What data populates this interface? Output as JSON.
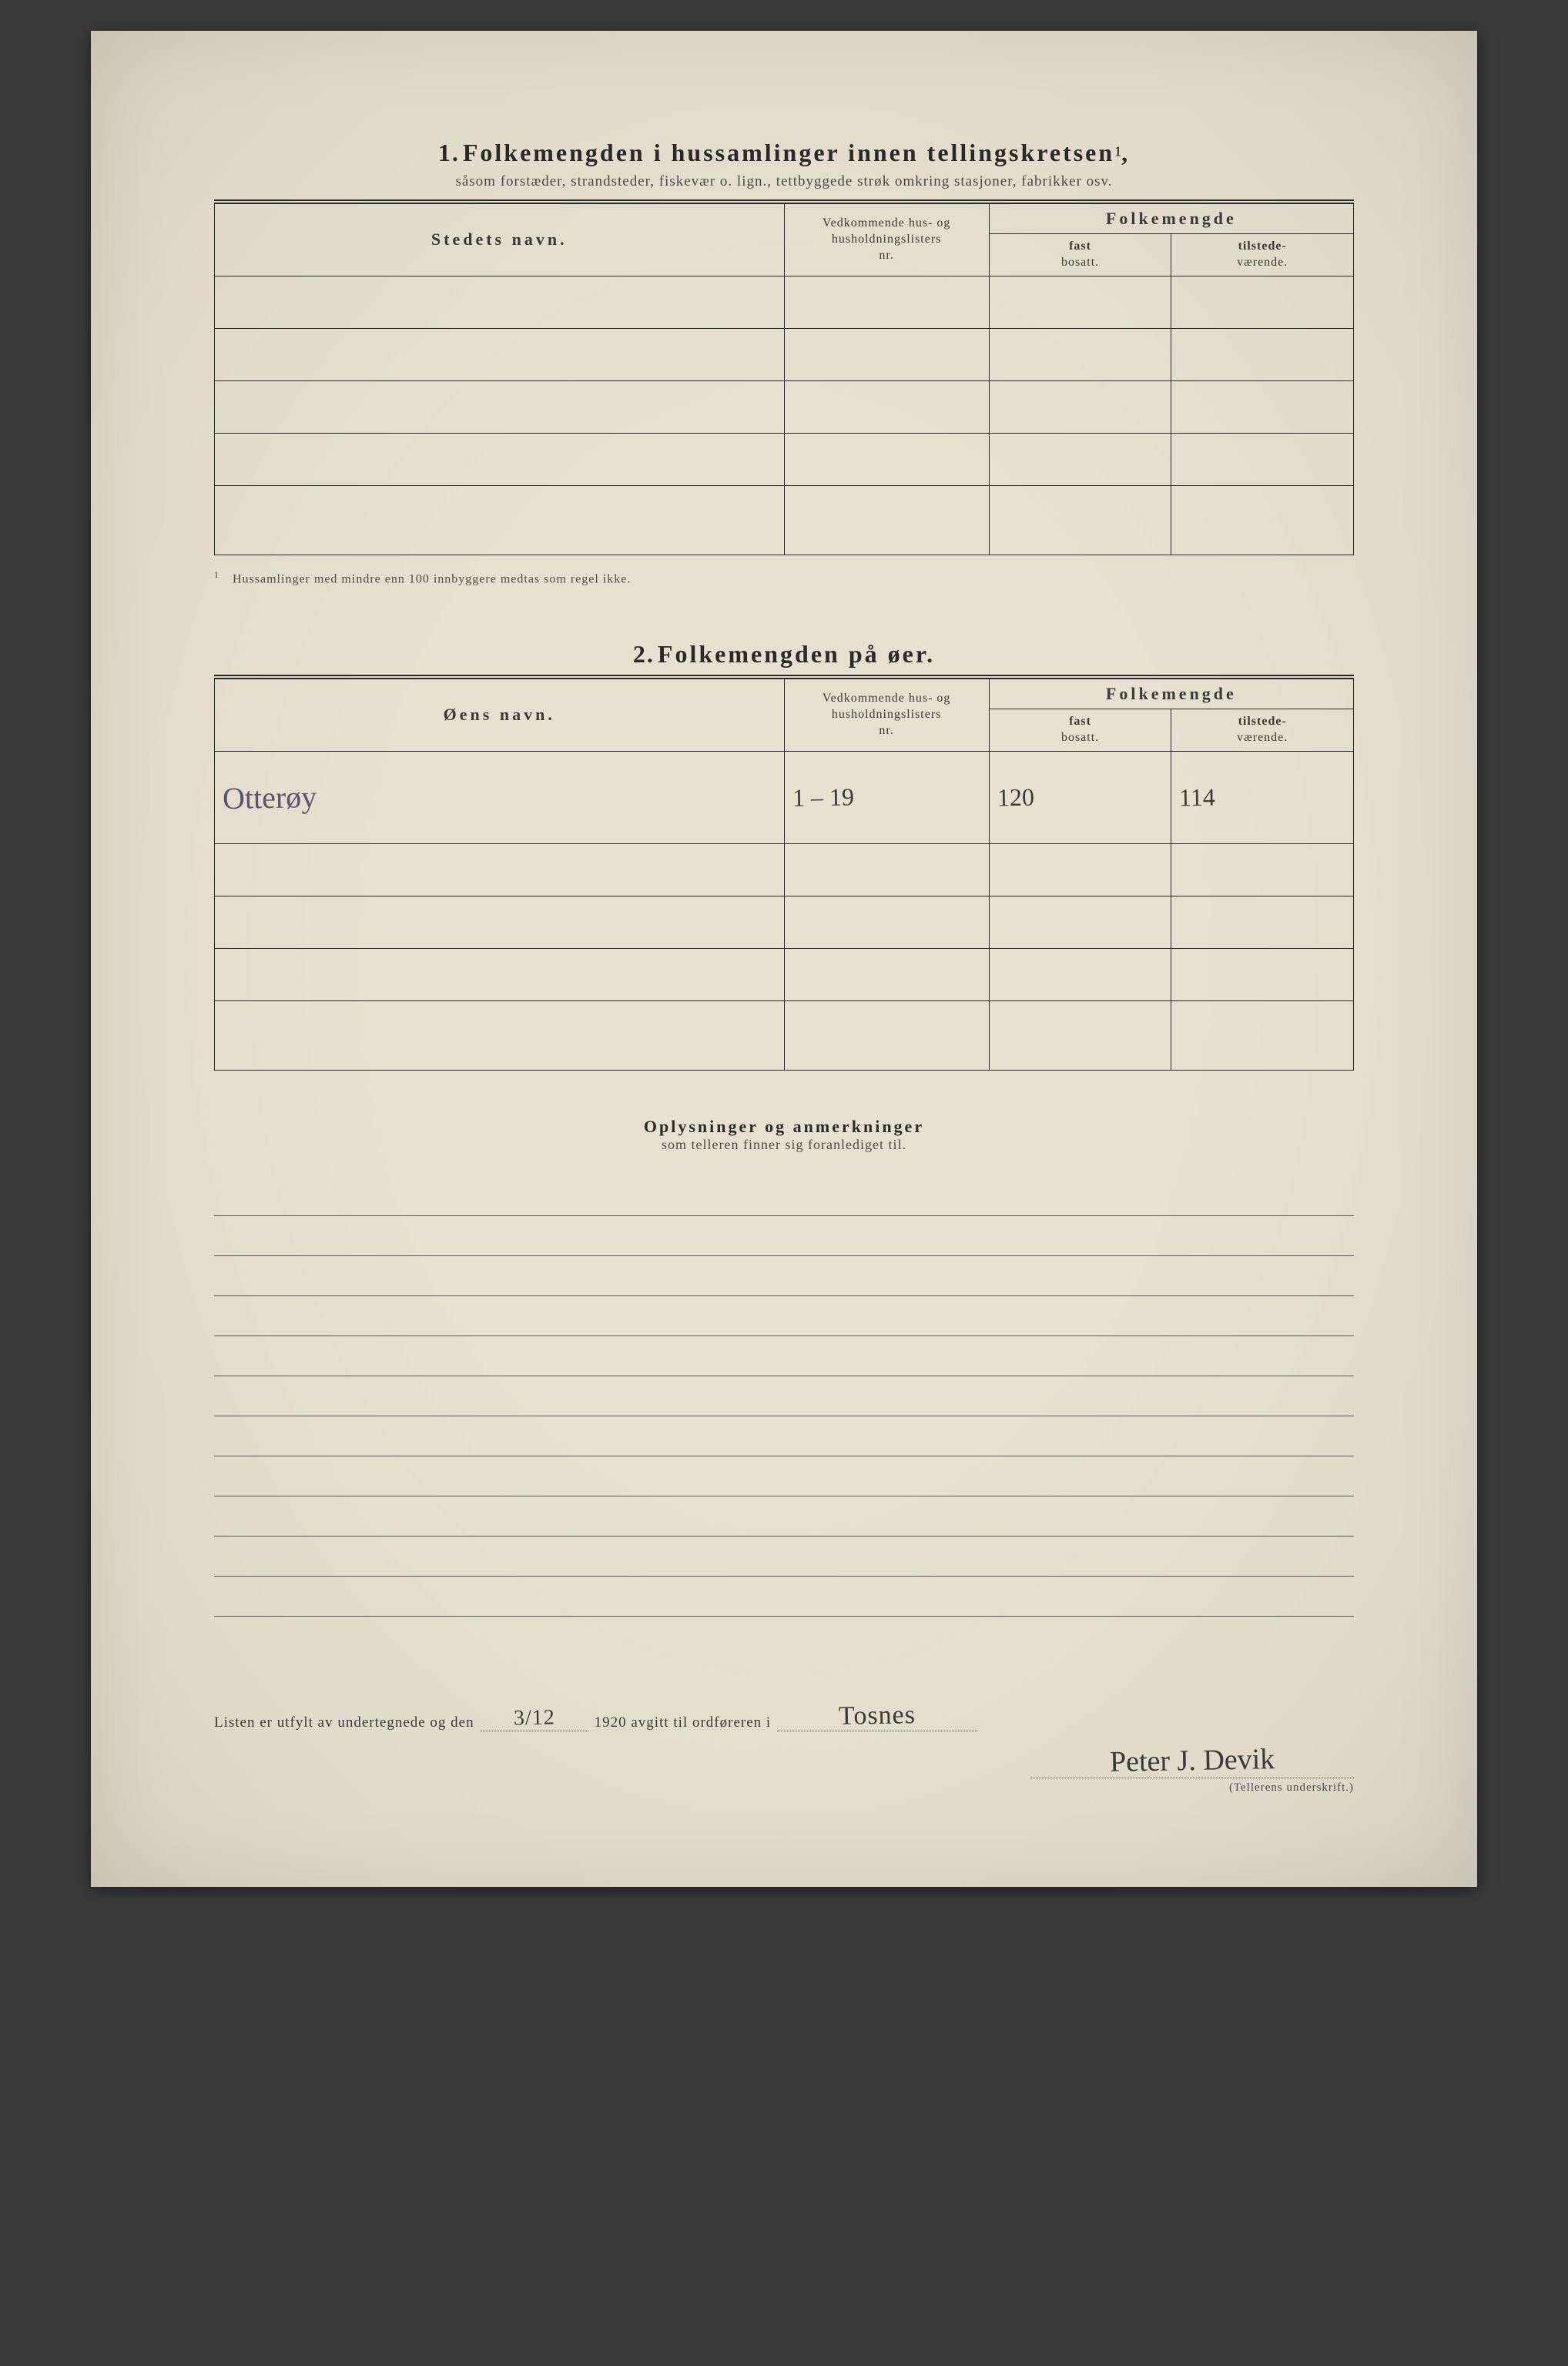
{
  "section1": {
    "number": "1.",
    "title": "Folkemengden i hussamlinger innen tellingskretsen",
    "title_sup": "1",
    "title_comma": ",",
    "subtitle": "såsom forstæder, strandsteder, fiskevær o. lign., tettbyggede strøk omkring stasjoner, fabrikker osv.",
    "headers": {
      "name": "Stedets navn.",
      "nr_line1": "Vedkommende hus- og",
      "nr_line2": "husholdningslisters",
      "nr_line3": "nr.",
      "pop": "Folkemengde",
      "fast_line1": "fast",
      "fast_line2": "bosatt.",
      "til_line1": "tilstede-",
      "til_line2": "værende."
    },
    "footnote_num": "1",
    "footnote": "Hussamlinger med mindre enn 100 innbyggere medtas som regel ikke."
  },
  "section2": {
    "number": "2.",
    "title": "Folkemengden på øer.",
    "headers": {
      "name": "Øens navn.",
      "nr_line1": "Vedkommende hus- og",
      "nr_line2": "husholdningslisters",
      "nr_line3": "nr.",
      "pop": "Folkemengde",
      "fast_line1": "fast",
      "fast_line2": "bosatt.",
      "til_line1": "tilstede-",
      "til_line2": "værende."
    },
    "rows": [
      {
        "name": "Otterøy",
        "nr": "1 – 19",
        "fast": "120",
        "til": "114"
      }
    ]
  },
  "notes": {
    "title": "Oplysninger og anmerkninger",
    "subtitle": "som telleren finner sig foranlediget til."
  },
  "signline": {
    "prefix": "Listen er utfylt av undertegnede og den",
    "date": "3/12",
    "year_text": "1920 avgitt til ordføreren i",
    "place": "Tosnes",
    "signature": "Peter J. Devik",
    "sig_caption": "(Tellerens underskrift.)"
  },
  "colors": {
    "paper": "#e8e1d0",
    "ink": "#2a2a2a",
    "hand_purple": "#5a5470",
    "hand_dark": "#3a3a3a",
    "background": "#3a3a3a"
  }
}
